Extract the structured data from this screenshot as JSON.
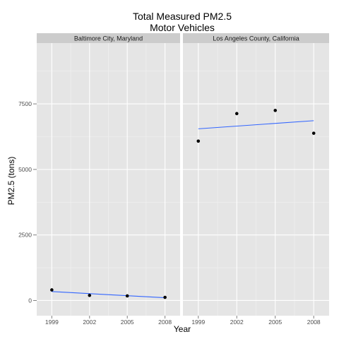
{
  "chart_data": {
    "type": "scatter",
    "title": "Total Measured PM2.5",
    "subtitle": "Motor Vehicles",
    "xlabel": "Year",
    "ylabel": "PM2.5 (tons)",
    "x_ticks": [
      "1999",
      "2002",
      "2005",
      "2008"
    ],
    "y_ticks": [
      "0",
      "2500",
      "5000",
      "7500"
    ],
    "x_range": [
      1997.8,
      2009.2
    ],
    "y_range": [
      -580,
      9820
    ],
    "grid": true,
    "legend": "none",
    "colors": {
      "panel_background": "#e5e5e5",
      "grid_major": "#ffffff",
      "grid_minor": "#f2f2f2",
      "strip_background": "#cccccc",
      "points": "#000000",
      "trend_line": "#3366ff"
    },
    "panels": [
      {
        "strip": "Baltimore City, Maryland",
        "x": [
          1999,
          2002,
          2005,
          2008
        ],
        "y": [
          405,
          195,
          175,
          120
        ],
        "trend": {
          "x": [
            1999,
            2008
          ],
          "y": [
            340,
            105
          ]
        }
      },
      {
        "strip": "Los Angeles County, California",
        "x": [
          1999,
          2002,
          2005,
          2008
        ],
        "y": [
          6080,
          7130,
          7250,
          6380
        ],
        "trend": {
          "x": [
            1999,
            2008
          ],
          "y": [
            6550,
            6860
          ]
        }
      }
    ]
  }
}
